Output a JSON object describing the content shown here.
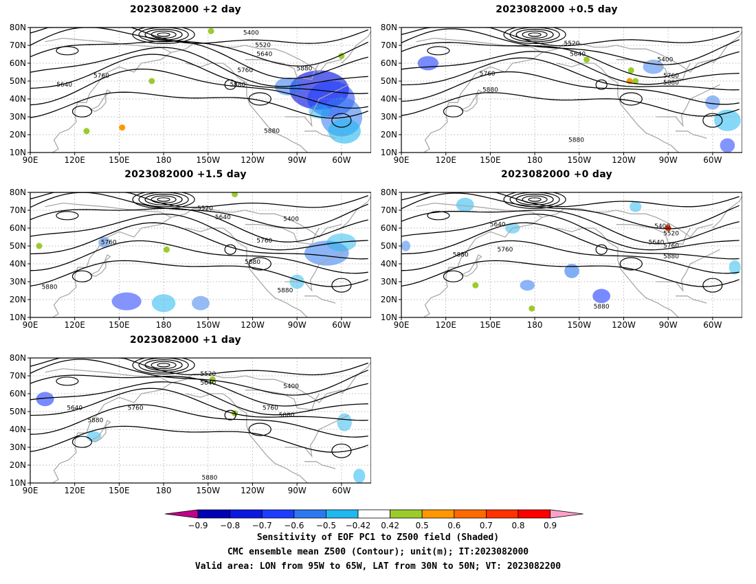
{
  "panels": [
    {
      "id": "p2",
      "title": "2023082000 +2 day"
    },
    {
      "id": "p05",
      "title": "2023082000 +0.5 day"
    },
    {
      "id": "p15",
      "title": "2023082000 +1.5 day"
    },
    {
      "id": "p0",
      "title": "2023082000 +0 day"
    },
    {
      "id": "p1",
      "title": "2023082000 +1 day"
    }
  ],
  "axes": {
    "lat_labels": [
      "80N",
      "70N",
      "60N",
      "50N",
      "40N",
      "30N",
      "20N",
      "10N"
    ],
    "lon_labels": [
      "90E",
      "120E",
      "150E",
      "180",
      "150W",
      "120W",
      "90W",
      "60W"
    ]
  },
  "contour_labels": {
    "p2": [
      "5400",
      "5520",
      "5640",
      "5760",
      "5640",
      "5760",
      "5880",
      "5880",
      "5880"
    ],
    "p05": [
      "5520",
      "5640",
      "5400",
      "5760",
      "5880",
      "5760",
      "5880",
      "5880"
    ],
    "p15": [
      "5520",
      "5640",
      "5400",
      "5760",
      "5760",
      "5880",
      "5880",
      "5880"
    ],
    "p0": [
      "5400",
      "5520",
      "5640",
      "5640",
      "5760",
      "5760",
      "5880",
      "5880",
      "5880"
    ],
    "p1": [
      "5520",
      "5640",
      "5400",
      "5640",
      "5760",
      "5760",
      "5880",
      "5880",
      "5880"
    ]
  },
  "colorbar": {
    "tick_labels": [
      "−0.9",
      "−0.8",
      "−0.7",
      "−0.6",
      "−0.5",
      "−0.42",
      "0.42",
      "0.5",
      "0.6",
      "0.7",
      "0.8",
      "0.9"
    ],
    "colors": [
      "#0000b4",
      "#0a18e0",
      "#1e3cff",
      "#2c78f0",
      "#20b8f0",
      "#ffffff",
      "#9bcc2c",
      "#ff9800",
      "#ff6a00",
      "#ff3200",
      "#ff0000"
    ],
    "low_arrow_color": "#c0008c",
    "high_arrow_color": "#ffa0c8"
  },
  "caption": {
    "line1": "Sensitivity of EOF PC1 to Z500 field (Shaded)",
    "line2": "CMC ensemble mean Z500 (Contour); unit(m); IT:2023082000",
    "line3": "Valid area: LON from 95W to 65W, LAT from 30N to 50N; VT: 2023082200"
  }
}
